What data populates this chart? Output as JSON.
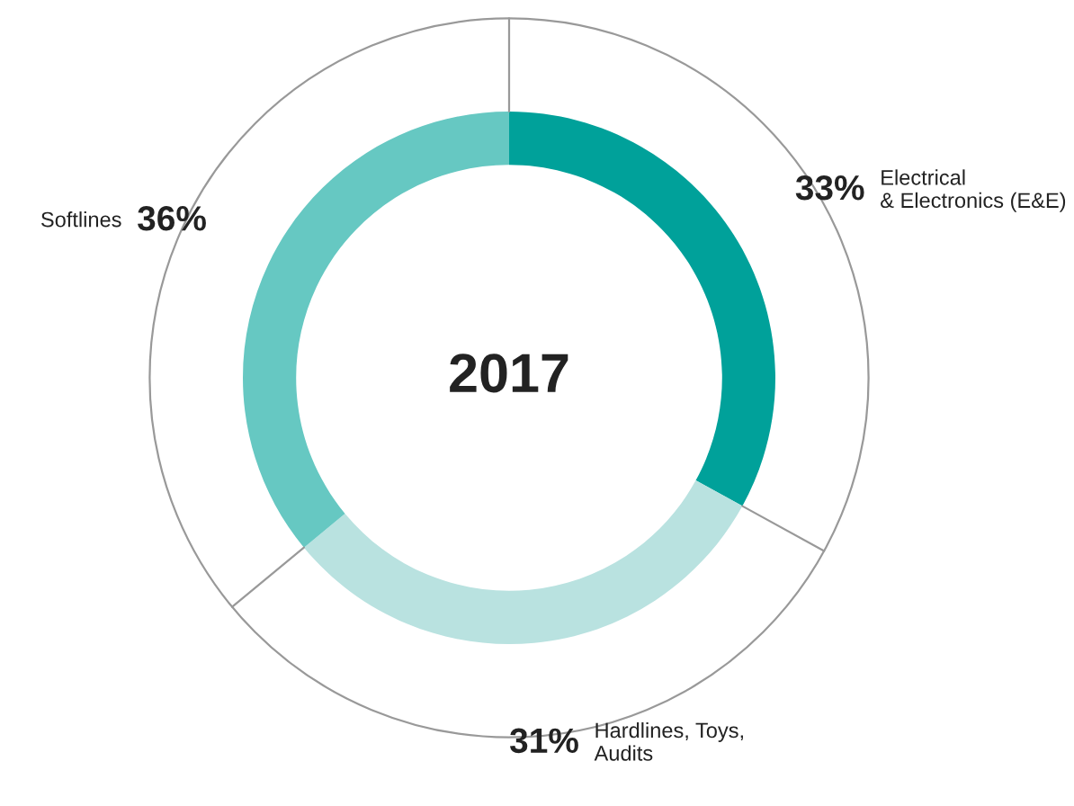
{
  "chart_data": {
    "type": "donut",
    "title": "2017",
    "categories": [
      "Electrical\n& Electronics (E&E)",
      "Hardlines, Toys,\nAudits",
      "Softlines"
    ],
    "values": [
      33,
      31,
      36
    ],
    "colors": [
      "#00a19a",
      "#b9e2e0",
      "#66c8c2"
    ],
    "value_labels": [
      "33%",
      "31%",
      "36%"
    ],
    "legend": false
  }
}
